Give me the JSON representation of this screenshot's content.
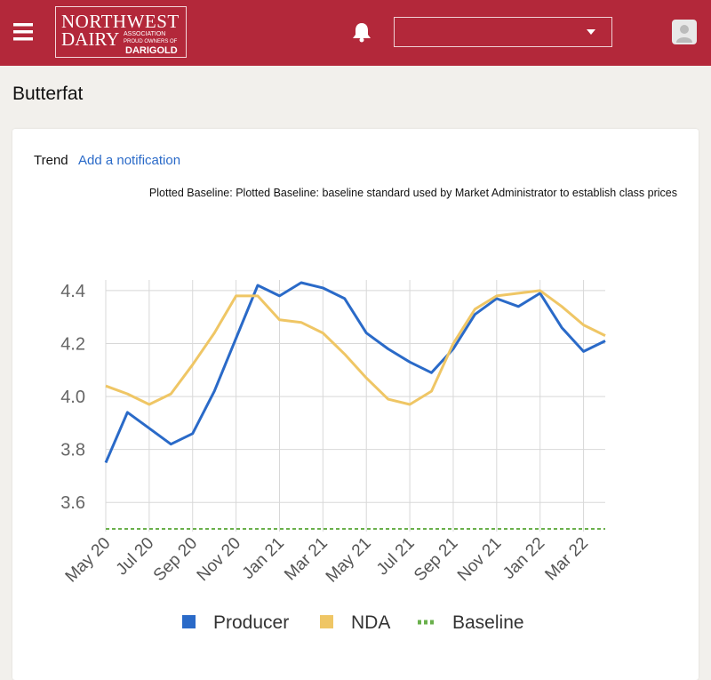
{
  "header": {
    "logo": {
      "line1": "NORTHWEST",
      "line2": "DAIRY",
      "line3": "ASSOCIATION",
      "line4": "PROUD OWNERS OF",
      "line5": "DARIGOLD"
    }
  },
  "page_title": "Butterfat",
  "card": {
    "label": "Trend",
    "link": "Add a notification",
    "note": "Plotted Baseline: Plotted Baseline: baseline standard used by Market Administrator to establish class prices"
  },
  "chart_data": {
    "type": "line",
    "categories": [
      "May 20",
      null,
      "Jul 20",
      null,
      "Sep 20",
      null,
      "Nov 20",
      null,
      "Jan 21",
      null,
      "Mar 21",
      null,
      "May 21",
      null,
      "Jul 21",
      null,
      "Sep 21",
      null,
      "Nov 21",
      null,
      "Jan 22",
      null,
      "Mar 22",
      null
    ],
    "series": [
      {
        "name": "Producer",
        "color": "#2a6ac8",
        "values": [
          3.75,
          3.94,
          3.88,
          3.82,
          3.86,
          4.02,
          4.22,
          4.42,
          4.38,
          4.43,
          4.41,
          4.37,
          4.24,
          4.18,
          4.13,
          4.09,
          4.18,
          4.31,
          4.37,
          4.34,
          4.39,
          4.26,
          4.17,
          4.21
        ]
      },
      {
        "name": "NDA",
        "color": "#efc665",
        "values": [
          4.04,
          4.01,
          3.97,
          4.01,
          4.12,
          4.24,
          4.38,
          4.38,
          4.29,
          4.28,
          4.24,
          4.16,
          4.07,
          3.99,
          3.97,
          4.02,
          4.2,
          4.33,
          4.38,
          4.39,
          4.4,
          4.34,
          4.27,
          4.23
        ]
      },
      {
        "name": "Baseline",
        "color": "#6ab04c",
        "dashed": true,
        "values": [
          3.5,
          3.5,
          3.5,
          3.5,
          3.5,
          3.5,
          3.5,
          3.5,
          3.5,
          3.5,
          3.5,
          3.5,
          3.5,
          3.5,
          3.5,
          3.5,
          3.5,
          3.5,
          3.5,
          3.5,
          3.5,
          3.5,
          3.5,
          3.5
        ]
      }
    ],
    "ylim": [
      3.49,
      4.44
    ],
    "yticks": [
      3.6,
      3.8,
      {
        "value": 4,
        "label": "4.0"
      },
      4.2,
      4.4
    ],
    "grid": true,
    "legend": "bottom"
  }
}
